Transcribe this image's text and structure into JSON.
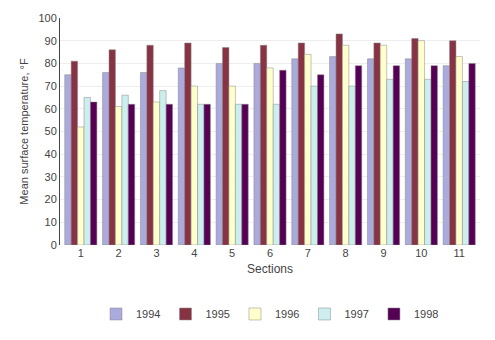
{
  "chart_data": {
    "type": "bar",
    "xlabel": "Sections",
    "ylabel": "Mean surface temperature, °F",
    "categories": [
      "1",
      "2",
      "3",
      "4",
      "5",
      "6",
      "7",
      "8",
      "9",
      "10",
      "11"
    ],
    "series": [
      {
        "name": "1994",
        "color": "#AAAADD",
        "values": [
          75,
          76,
          76,
          78,
          80,
          80,
          82,
          83,
          82,
          82,
          79
        ]
      },
      {
        "name": "1995",
        "color": "#883344",
        "values": [
          81,
          86,
          88,
          89,
          87,
          88,
          89,
          93,
          89,
          91,
          90
        ]
      },
      {
        "name": "1996",
        "color": "#FFFFCC",
        "values": [
          52,
          61,
          63,
          70,
          70,
          78,
          84,
          88,
          88,
          90,
          83
        ]
      },
      {
        "name": "1997",
        "color": "#CCEEEE",
        "values": [
          65,
          66,
          68,
          62,
          62,
          62,
          70,
          70,
          73,
          73,
          72
        ]
      },
      {
        "name": "1998",
        "color": "#550055",
        "values": [
          63,
          62,
          62,
          62,
          62,
          77,
          75,
          79,
          79,
          79,
          80
        ]
      }
    ],
    "ylim": [
      0,
      100
    ],
    "yticks": [
      0,
      10,
      20,
      30,
      40,
      50,
      60,
      70,
      80,
      90,
      100
    ],
    "grid": true,
    "legend": "bottom"
  }
}
